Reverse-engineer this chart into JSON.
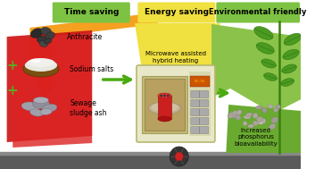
{
  "bg_color": "#ffffff",
  "banner_green": "#7dc242",
  "banner_yellow": "#f0e040",
  "orange_arrow": "#f5a020",
  "yellow_shape": "#f0e040",
  "green_shape": "#8bc34a",
  "green_dark": "#5a9a20",
  "red_card": "#cc1111",
  "road_color": "#5a5a5a",
  "mw_body": "#e8e8c8",
  "mw_border": "#b8b870",
  "mw_screen_bg": "#c8b878",
  "mw_screen_inner": "#6a5030",
  "pellet_color": "#b0a888",
  "pellet_edge": "#887860",
  "soil_green": "#6aaa30",
  "labels": {
    "time_saving": "Time saving",
    "energy_saving": "Energy saving",
    "environmental": "Environmental friendly",
    "anthracite": "Anthracite",
    "sodium_salts": "Sodium salts",
    "sewage_sludge": "Sewage\nsludge ash",
    "microwave": "Microwave assisted\nhybrid heating",
    "increased_p": "Increased\nphosphorus\nbioavailability"
  },
  "plus_color": "#5aaa20",
  "arrow_color": "#4aaa10"
}
